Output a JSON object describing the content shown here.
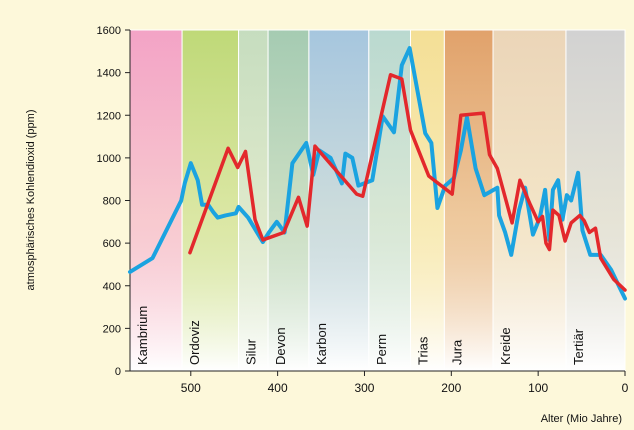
{
  "chart_data": {
    "type": "line",
    "x_label": "Alter (Mio Jahre)",
    "y_label": "atmosphärisches Kohlendioxid (ppm)",
    "xlim": [
      570,
      0
    ],
    "ylim": [
      0,
      1600
    ],
    "xticks": [
      500,
      400,
      300,
      200,
      100,
      0
    ],
    "yticks": [
      0,
      200,
      400,
      600,
      800,
      1000,
      1200,
      1400,
      1600
    ],
    "periods": [
      {
        "name": "Kambrium",
        "start": 570,
        "end": 510,
        "color": "#f3a3c6"
      },
      {
        "name": "Ordoviz",
        "start": 510,
        "end": 445,
        "color": "#bfd978"
      },
      {
        "name": "Silur",
        "start": 445,
        "end": 411,
        "color": "#c6ddbf"
      },
      {
        "name": "Devon",
        "start": 411,
        "end": 364,
        "color": "#a5cbb2"
      },
      {
        "name": "Karbon",
        "start": 364,
        "end": 295,
        "color": "#a6c6de"
      },
      {
        "name": "Perm",
        "start": 295,
        "end": 247,
        "color": "#bad9d0"
      },
      {
        "name": "Trias",
        "start": 247,
        "end": 208,
        "color": "#f4df96"
      },
      {
        "name": "Jura",
        "start": 208,
        "end": 152,
        "color": "#e1a26b"
      },
      {
        "name": "Kreide",
        "start": 152,
        "end": 68,
        "color": "#ebd5b8"
      },
      {
        "name": "Tertiär",
        "start": 68,
        "end": 0,
        "color": "#d2d2d2"
      }
    ],
    "series": [
      {
        "color": "#1ba3e0",
        "x": [
          570,
          544,
          511,
          507,
          500,
          492,
          487,
          480,
          474,
          469,
          460,
          448,
          445,
          434,
          417,
          410,
          401,
          392,
          383,
          367,
          359,
          352,
          339,
          326,
          322,
          314,
          307,
          291,
          279,
          266,
          257,
          248,
          230,
          223,
          216,
          207,
          197,
          189,
          182,
          172,
          162,
          147,
          145,
          138,
          131,
          122,
          115,
          106,
          98,
          92,
          87,
          83,
          77,
          72,
          67,
          62,
          54,
          49,
          40,
          28,
          16,
          6,
          0
        ],
        "values": [
          465,
          530,
          800,
          880,
          975,
          895,
          780,
          780,
          745,
          720,
          730,
          740,
          770,
          720,
          605,
          650,
          700,
          650,
          975,
          1070,
          920,
          1035,
          1000,
          880,
          1020,
          1000,
          870,
          895,
          1195,
          1120,
          1435,
          1515,
          1115,
          1070,
          765,
          870,
          905,
          1035,
          1190,
          950,
          825,
          860,
          730,
          650,
          545,
          755,
          860,
          640,
          720,
          850,
          615,
          850,
          895,
          710,
          825,
          800,
          930,
          660,
          545,
          545,
          475,
          390,
          340
        ]
      },
      {
        "color": "#e3282c",
        "x": [
          501,
          457,
          446,
          437,
          426,
          417,
          393,
          376,
          366,
          357,
          309,
          302,
          270,
          257,
          247,
          226,
          199,
          189,
          163,
          156,
          147,
          130,
          121,
          109,
          100,
          95,
          91,
          87,
          83,
          76,
          69,
          62,
          52,
          47,
          41,
          34,
          28,
          13,
          0
        ],
        "values": [
          555,
          1045,
          955,
          1030,
          710,
          615,
          650,
          815,
          680,
          1055,
          830,
          820,
          1390,
          1370,
          1130,
          915,
          830,
          1200,
          1210,
          1015,
          950,
          695,
          895,
          780,
          700,
          725,
          600,
          570,
          755,
          730,
          610,
          695,
          730,
          705,
          650,
          670,
          530,
          430,
          380
        ]
      }
    ]
  }
}
